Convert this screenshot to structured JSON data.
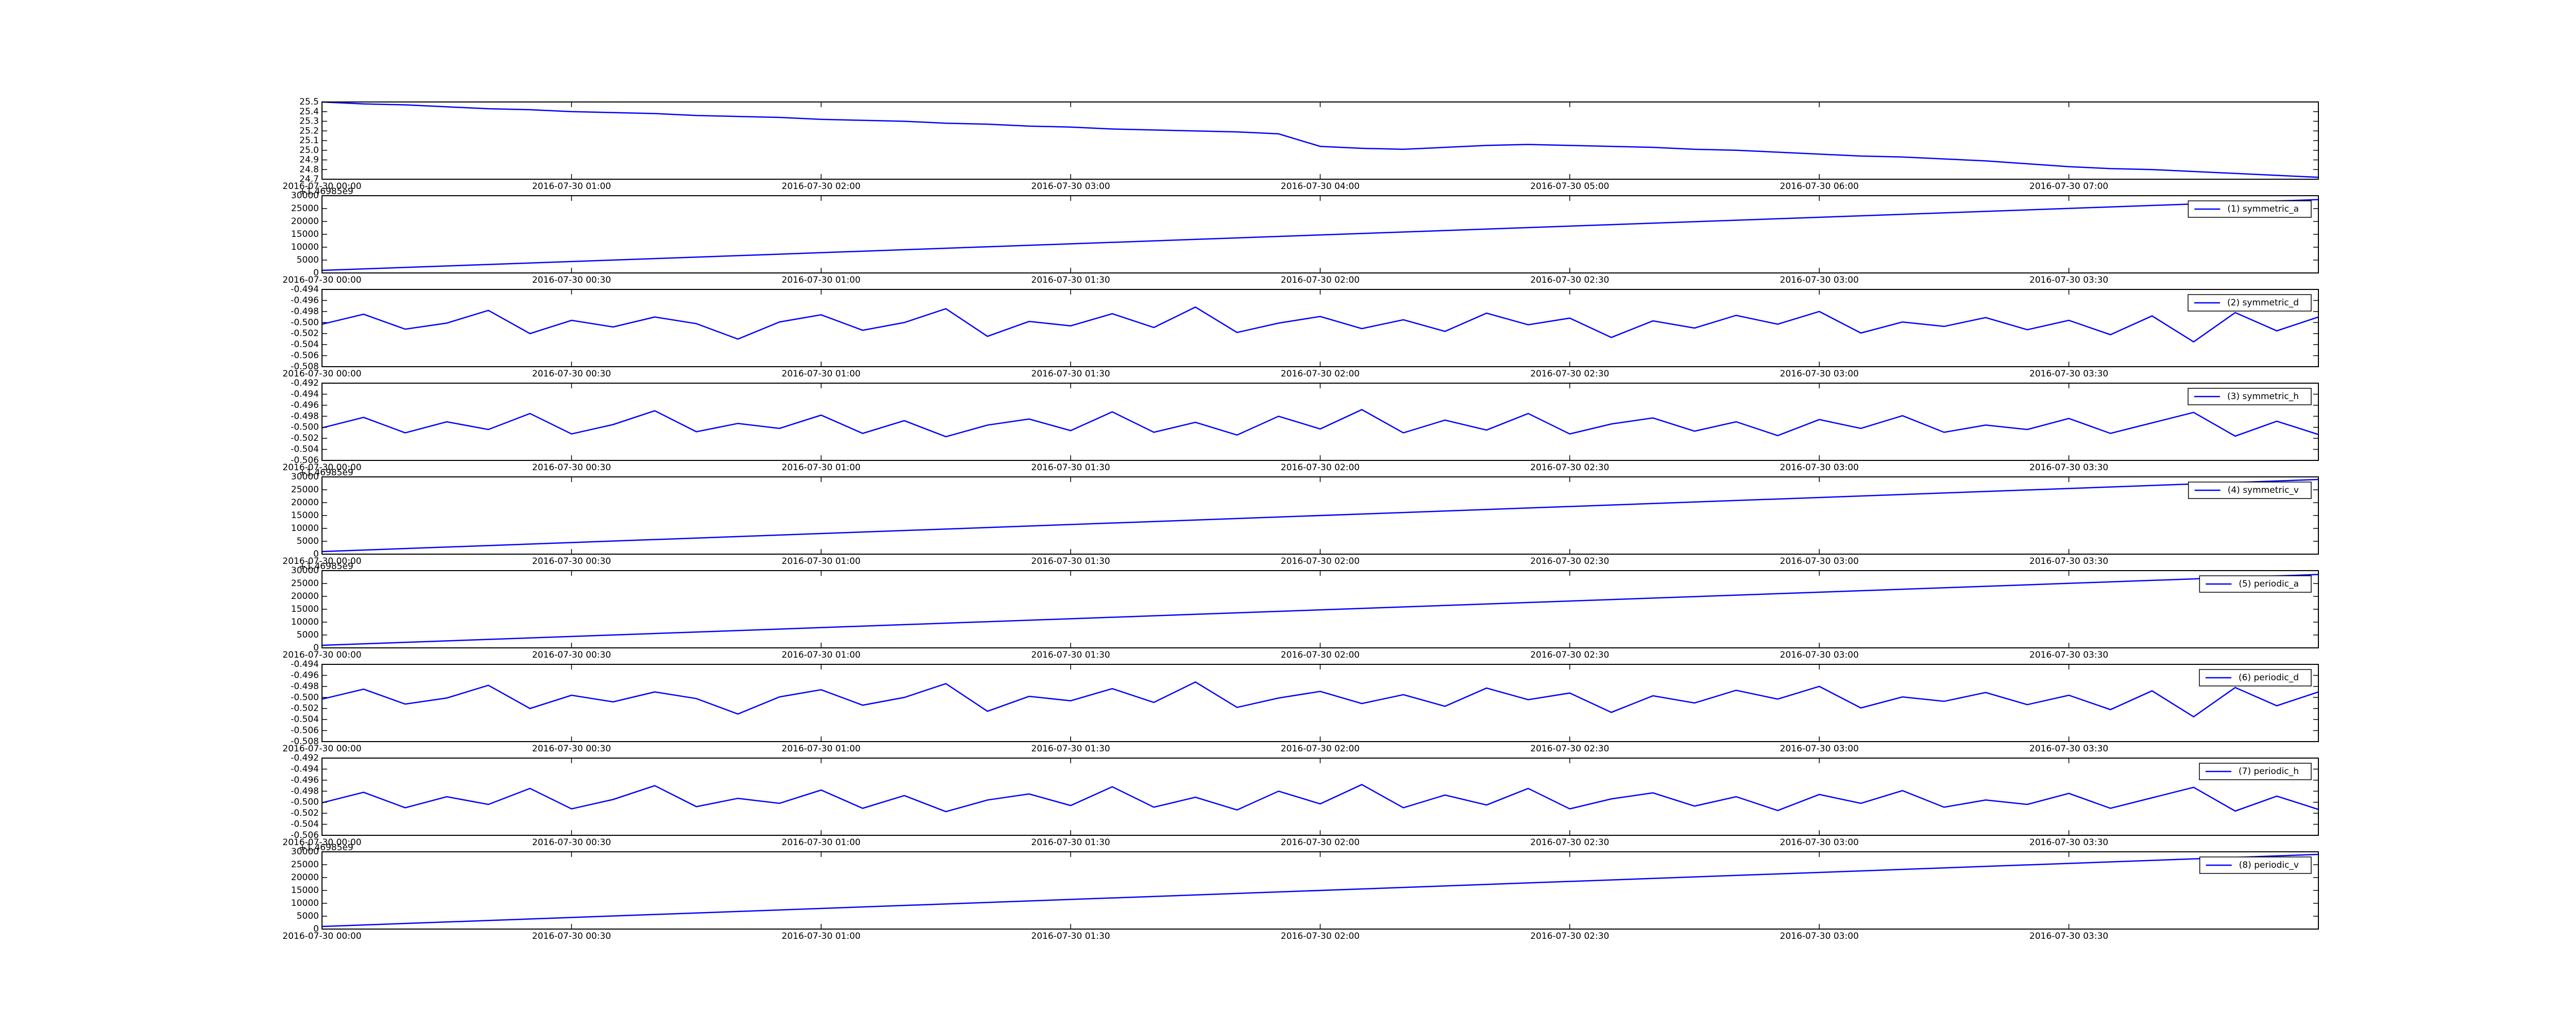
{
  "chart_data": [
    {
      "type": "line",
      "x": [
        "2016-07-30 00:00",
        "2016-07-30 00:10",
        "2016-07-30 00:20",
        "2016-07-30 00:30",
        "2016-07-30 00:40",
        "2016-07-30 00:50",
        "2016-07-30 01:00",
        "2016-07-30 01:10",
        "2016-07-30 01:20",
        "2016-07-30 01:30",
        "2016-07-30 01:40",
        "2016-07-30 01:50",
        "2016-07-30 02:00",
        "2016-07-30 02:10",
        "2016-07-30 02:20",
        "2016-07-30 02:30",
        "2016-07-30 02:40",
        "2016-07-30 02:50",
        "2016-07-30 03:00",
        "2016-07-30 03:10",
        "2016-07-30 03:20",
        "2016-07-30 03:30",
        "2016-07-30 03:40",
        "2016-07-30 03:50",
        "2016-07-30 04:00",
        "2016-07-30 04:10",
        "2016-07-30 04:20",
        "2016-07-30 04:30",
        "2016-07-30 04:40",
        "2016-07-30 04:50",
        "2016-07-30 05:00",
        "2016-07-30 05:10",
        "2016-07-30 05:20",
        "2016-07-30 05:30",
        "2016-07-30 05:40",
        "2016-07-30 05:50",
        "2016-07-30 06:00",
        "2016-07-30 06:10",
        "2016-07-30 06:20",
        "2016-07-30 06:30",
        "2016-07-30 06:40",
        "2016-07-30 06:50",
        "2016-07-30 07:00",
        "2016-07-30 07:10",
        "2016-07-30 07:20",
        "2016-07-30 07:30",
        "2016-07-30 07:40",
        "2016-07-30 07:50",
        "2016-07-30 08:00"
      ],
      "series": [
        {
          "color": "#0000ff",
          "values": [
            25.5,
            25.48,
            25.47,
            25.45,
            25.43,
            25.42,
            25.4,
            25.39,
            25.38,
            25.36,
            25.35,
            25.34,
            25.32,
            25.31,
            25.3,
            25.28,
            25.27,
            25.25,
            25.24,
            25.22,
            25.21,
            25.2,
            25.19,
            25.17,
            25.04,
            25.02,
            25.01,
            25.03,
            25.05,
            25.06,
            25.05,
            25.04,
            25.03,
            25.01,
            25.0,
            24.98,
            24.96,
            24.94,
            24.93,
            24.91,
            24.89,
            24.86,
            24.83,
            24.81,
            24.8,
            24.78,
            24.76,
            24.74,
            24.72
          ]
        }
      ],
      "xlim": [
        "2016-07-30 00:00",
        "2016-07-30 08:00"
      ],
      "xticks": [
        "2016-07-30 00:00",
        "2016-07-30 01:00",
        "2016-07-30 02:00",
        "2016-07-30 03:00",
        "2016-07-30 04:00",
        "2016-07-30 05:00",
        "2016-07-30 06:00",
        "2016-07-30 07:00"
      ],
      "ylim": [
        24.7,
        25.5
      ],
      "yticks": [
        24.7,
        24.8,
        24.9,
        {
          "value": 25,
          "label": "25.0"
        },
        25.1,
        25.2,
        25.3,
        25.4,
        25.5
      ]
    },
    {
      "type": "line",
      "x": [
        "2016-07-30 00:00",
        "2016-07-30 04:00"
      ],
      "y_offset_label": "+1.46985e9",
      "series": [
        {
          "name": "(1) symmetric_a",
          "color": "#0000ff",
          "values": [
            1000,
            28500
          ]
        }
      ],
      "xlim": [
        "2016-07-30 00:00",
        "2016-07-30 04:00"
      ],
      "xticks": [
        "2016-07-30 00:00",
        "2016-07-30 00:30",
        "2016-07-30 01:00",
        "2016-07-30 01:30",
        "2016-07-30 02:00",
        "2016-07-30 02:30",
        "2016-07-30 03:00",
        "2016-07-30 03:30"
      ],
      "ylim": [
        0,
        30000
      ],
      "yticks": [
        0,
        5000,
        10000,
        15000,
        20000,
        25000,
        30000
      ],
      "legend": "upper right"
    },
    {
      "type": "line",
      "x": [
        "2016-07-30 00:00",
        "2016-07-30 00:05",
        "2016-07-30 00:10",
        "2016-07-30 00:15",
        "2016-07-30 00:20",
        "2016-07-30 00:25",
        "2016-07-30 00:30",
        "2016-07-30 00:35",
        "2016-07-30 00:40",
        "2016-07-30 00:45",
        "2016-07-30 00:50",
        "2016-07-30 00:55",
        "2016-07-30 01:00",
        "2016-07-30 01:05",
        "2016-07-30 01:10",
        "2016-07-30 01:15",
        "2016-07-30 01:20",
        "2016-07-30 01:25",
        "2016-07-30 01:30",
        "2016-07-30 01:35",
        "2016-07-30 01:40",
        "2016-07-30 01:45",
        "2016-07-30 01:50",
        "2016-07-30 01:55",
        "2016-07-30 02:00",
        "2016-07-30 02:05",
        "2016-07-30 02:10",
        "2016-07-30 02:15",
        "2016-07-30 02:20",
        "2016-07-30 02:25",
        "2016-07-30 02:30",
        "2016-07-30 02:35",
        "2016-07-30 02:40",
        "2016-07-30 02:45",
        "2016-07-30 02:50",
        "2016-07-30 02:55",
        "2016-07-30 03:00",
        "2016-07-30 03:05",
        "2016-07-30 03:10",
        "2016-07-30 03:15",
        "2016-07-30 03:20",
        "2016-07-30 03:25",
        "2016-07-30 03:30",
        "2016-07-30 03:35",
        "2016-07-30 03:40",
        "2016-07-30 03:45",
        "2016-07-30 03:50",
        "2016-07-30 03:55",
        "2016-07-30 04:00"
      ],
      "series": [
        {
          "name": "(2) symmetric_d",
          "color": "#0000ff",
          "values": [
            -0.5003,
            -0.4985,
            -0.5012,
            -0.5001,
            -0.4978,
            -0.502,
            -0.4996,
            -0.5008,
            -0.499,
            -0.5002,
            -0.503,
            -0.4999,
            -0.4986,
            -0.5014,
            -0.5,
            -0.4975,
            -0.5025,
            -0.4998,
            -0.5006,
            -0.4984,
            -0.5009,
            -0.4972,
            -0.5018,
            -0.5001,
            -0.4989,
            -0.5011,
            -0.4995,
            -0.5016,
            -0.4983,
            -0.5004,
            -0.4992,
            -0.5027,
            -0.4997,
            -0.501,
            -0.4987,
            -0.5003,
            -0.498,
            -0.5019,
            -0.4999,
            -0.5007,
            -0.4991,
            -0.5013,
            -0.4996,
            -0.5022,
            -0.4988,
            -0.5035,
            -0.4982,
            -0.5015,
            -0.499
          ]
        }
      ],
      "xlim": [
        "2016-07-30 00:00",
        "2016-07-30 04:00"
      ],
      "xticks": [
        "2016-07-30 00:00",
        "2016-07-30 00:30",
        "2016-07-30 01:00",
        "2016-07-30 01:30",
        "2016-07-30 02:00",
        "2016-07-30 02:30",
        "2016-07-30 03:00",
        "2016-07-30 03:30"
      ],
      "ylim": [
        -0.508,
        -0.494
      ],
      "yticks": [
        -0.508,
        -0.506,
        -0.504,
        -0.502,
        {
          "value": -0.5,
          "label": "-0.500"
        },
        -0.498,
        -0.496,
        -0.494
      ],
      "legend": "upper right"
    },
    {
      "type": "line",
      "x": [
        "2016-07-30 00:00",
        "2016-07-30 00:05",
        "2016-07-30 00:10",
        "2016-07-30 00:15",
        "2016-07-30 00:20",
        "2016-07-30 00:25",
        "2016-07-30 00:30",
        "2016-07-30 00:35",
        "2016-07-30 00:40",
        "2016-07-30 00:45",
        "2016-07-30 00:50",
        "2016-07-30 00:55",
        "2016-07-30 01:00",
        "2016-07-30 01:05",
        "2016-07-30 01:10",
        "2016-07-30 01:15",
        "2016-07-30 01:20",
        "2016-07-30 01:25",
        "2016-07-30 01:30",
        "2016-07-30 01:35",
        "2016-07-30 01:40",
        "2016-07-30 01:45",
        "2016-07-30 01:50",
        "2016-07-30 01:55",
        "2016-07-30 02:00",
        "2016-07-30 02:05",
        "2016-07-30 02:10",
        "2016-07-30 02:15",
        "2016-07-30 02:20",
        "2016-07-30 02:25",
        "2016-07-30 02:30",
        "2016-07-30 02:35",
        "2016-07-30 02:40",
        "2016-07-30 02:45",
        "2016-07-30 02:50",
        "2016-07-30 02:55",
        "2016-07-30 03:00",
        "2016-07-30 03:05",
        "2016-07-30 03:10",
        "2016-07-30 03:15",
        "2016-07-30 03:20",
        "2016-07-30 03:25",
        "2016-07-30 03:30",
        "2016-07-30 03:35",
        "2016-07-30 03:40",
        "2016-07-30 03:45",
        "2016-07-30 03:50",
        "2016-07-30 03:55",
        "2016-07-30 04:00"
      ],
      "series": [
        {
          "name": "(3) symmetric_h",
          "color": "#0000ff",
          "values": [
            -0.5001,
            -0.4982,
            -0.501,
            -0.499,
            -0.5004,
            -0.4975,
            -0.5012,
            -0.4995,
            -0.497,
            -0.5008,
            -0.4993,
            -0.5002,
            -0.4978,
            -0.5011,
            -0.4988,
            -0.5017,
            -0.4996,
            -0.4985,
            -0.5006,
            -0.4972,
            -0.5009,
            -0.4991,
            -0.5014,
            -0.498,
            -0.5003,
            -0.4968,
            -0.501,
            -0.4987,
            -0.5005,
            -0.4975,
            -0.5012,
            -0.4994,
            -0.4983,
            -0.5007,
            -0.499,
            -0.5015,
            -0.4986,
            -0.5002,
            -0.4979,
            -0.5009,
            -0.4996,
            -0.5004,
            -0.4984,
            -0.5011,
            -0.4992,
            -0.4973,
            -0.5016,
            -0.4989,
            -0.5013
          ]
        }
      ],
      "xlim": [
        "2016-07-30 00:00",
        "2016-07-30 04:00"
      ],
      "xticks": [
        "2016-07-30 00:00",
        "2016-07-30 00:30",
        "2016-07-30 01:00",
        "2016-07-30 01:30",
        "2016-07-30 02:00",
        "2016-07-30 02:30",
        "2016-07-30 03:00",
        "2016-07-30 03:30"
      ],
      "ylim": [
        -0.506,
        -0.492
      ],
      "yticks": [
        -0.506,
        -0.504,
        -0.502,
        {
          "value": -0.5,
          "label": "-0.500"
        },
        -0.498,
        -0.496,
        -0.494,
        -0.492
      ],
      "legend": "upper right"
    },
    {
      "type": "line",
      "x": [
        "2016-07-30 00:00",
        "2016-07-30 04:00"
      ],
      "y_offset_label": "+1.46985e9",
      "series": [
        {
          "name": "(4) symmetric_v",
          "color": "#0000ff",
          "values": [
            1000,
            29000
          ]
        }
      ],
      "xlim": [
        "2016-07-30 00:00",
        "2016-07-30 04:00"
      ],
      "xticks": [
        "2016-07-30 00:00",
        "2016-07-30 00:30",
        "2016-07-30 01:00",
        "2016-07-30 01:30",
        "2016-07-30 02:00",
        "2016-07-30 02:30",
        "2016-07-30 03:00",
        "2016-07-30 03:30"
      ],
      "ylim": [
        0,
        30000
      ],
      "yticks": [
        0,
        5000,
        10000,
        15000,
        20000,
        25000,
        30000
      ],
      "legend": "upper right"
    },
    {
      "type": "line",
      "x": [
        "2016-07-30 00:00",
        "2016-07-30 04:00"
      ],
      "y_offset_label": "+1.46985e9",
      "series": [
        {
          "name": "(5) periodic_a",
          "color": "#0000ff",
          "values": [
            1000,
            28500
          ]
        }
      ],
      "xlim": [
        "2016-07-30 00:00",
        "2016-07-30 04:00"
      ],
      "xticks": [
        "2016-07-30 00:00",
        "2016-07-30 00:30",
        "2016-07-30 01:00",
        "2016-07-30 01:30",
        "2016-07-30 02:00",
        "2016-07-30 02:30",
        "2016-07-30 03:00",
        "2016-07-30 03:30"
      ],
      "ylim": [
        0,
        30000
      ],
      "yticks": [
        0,
        5000,
        10000,
        15000,
        20000,
        25000,
        30000
      ],
      "legend": "upper right"
    },
    {
      "type": "line",
      "x": [
        "2016-07-30 00:00",
        "2016-07-30 00:05",
        "2016-07-30 00:10",
        "2016-07-30 00:15",
        "2016-07-30 00:20",
        "2016-07-30 00:25",
        "2016-07-30 00:30",
        "2016-07-30 00:35",
        "2016-07-30 00:40",
        "2016-07-30 00:45",
        "2016-07-30 00:50",
        "2016-07-30 00:55",
        "2016-07-30 01:00",
        "2016-07-30 01:05",
        "2016-07-30 01:10",
        "2016-07-30 01:15",
        "2016-07-30 01:20",
        "2016-07-30 01:25",
        "2016-07-30 01:30",
        "2016-07-30 01:35",
        "2016-07-30 01:40",
        "2016-07-30 01:45",
        "2016-07-30 01:50",
        "2016-07-30 01:55",
        "2016-07-30 02:00",
        "2016-07-30 02:05",
        "2016-07-30 02:10",
        "2016-07-30 02:15",
        "2016-07-30 02:20",
        "2016-07-30 02:25",
        "2016-07-30 02:30",
        "2016-07-30 02:35",
        "2016-07-30 02:40",
        "2016-07-30 02:45",
        "2016-07-30 02:50",
        "2016-07-30 02:55",
        "2016-07-30 03:00",
        "2016-07-30 03:05",
        "2016-07-30 03:10",
        "2016-07-30 03:15",
        "2016-07-30 03:20",
        "2016-07-30 03:25",
        "2016-07-30 03:30",
        "2016-07-30 03:35",
        "2016-07-30 03:40",
        "2016-07-30 03:45",
        "2016-07-30 03:50",
        "2016-07-30 03:55",
        "2016-07-30 04:00"
      ],
      "series": [
        {
          "name": "(6) periodic_d",
          "color": "#0000ff",
          "values": [
            -0.5003,
            -0.4985,
            -0.5012,
            -0.5001,
            -0.4978,
            -0.502,
            -0.4996,
            -0.5008,
            -0.499,
            -0.5002,
            -0.503,
            -0.4999,
            -0.4986,
            -0.5014,
            -0.5,
            -0.4975,
            -0.5025,
            -0.4998,
            -0.5006,
            -0.4984,
            -0.5009,
            -0.4972,
            -0.5018,
            -0.5001,
            -0.4989,
            -0.5011,
            -0.4995,
            -0.5016,
            -0.4983,
            -0.5004,
            -0.4992,
            -0.5027,
            -0.4997,
            -0.501,
            -0.4987,
            -0.5003,
            -0.498,
            -0.5019,
            -0.4999,
            -0.5007,
            -0.4991,
            -0.5013,
            -0.4996,
            -0.5022,
            -0.4988,
            -0.5035,
            -0.4982,
            -0.5015,
            -0.499
          ]
        }
      ],
      "xlim": [
        "2016-07-30 00:00",
        "2016-07-30 04:00"
      ],
      "xticks": [
        "2016-07-30 00:00",
        "2016-07-30 00:30",
        "2016-07-30 01:00",
        "2016-07-30 01:30",
        "2016-07-30 02:00",
        "2016-07-30 02:30",
        "2016-07-30 03:00",
        "2016-07-30 03:30"
      ],
      "ylim": [
        -0.508,
        -0.494
      ],
      "yticks": [
        -0.508,
        -0.506,
        -0.504,
        -0.502,
        {
          "value": -0.5,
          "label": "-0.500"
        },
        -0.498,
        -0.496,
        -0.494
      ],
      "legend": "upper right"
    },
    {
      "type": "line",
      "x": [
        "2016-07-30 00:00",
        "2016-07-30 00:05",
        "2016-07-30 00:10",
        "2016-07-30 00:15",
        "2016-07-30 00:20",
        "2016-07-30 00:25",
        "2016-07-30 00:30",
        "2016-07-30 00:35",
        "2016-07-30 00:40",
        "2016-07-30 00:45",
        "2016-07-30 00:50",
        "2016-07-30 00:55",
        "2016-07-30 01:00",
        "2016-07-30 01:05",
        "2016-07-30 01:10",
        "2016-07-30 01:15",
        "2016-07-30 01:20",
        "2016-07-30 01:25",
        "2016-07-30 01:30",
        "2016-07-30 01:35",
        "2016-07-30 01:40",
        "2016-07-30 01:45",
        "2016-07-30 01:50",
        "2016-07-30 01:55",
        "2016-07-30 02:00",
        "2016-07-30 02:05",
        "2016-07-30 02:10",
        "2016-07-30 02:15",
        "2016-07-30 02:20",
        "2016-07-30 02:25",
        "2016-07-30 02:30",
        "2016-07-30 02:35",
        "2016-07-30 02:40",
        "2016-07-30 02:45",
        "2016-07-30 02:50",
        "2016-07-30 02:55",
        "2016-07-30 03:00",
        "2016-07-30 03:05",
        "2016-07-30 03:10",
        "2016-07-30 03:15",
        "2016-07-30 03:20",
        "2016-07-30 03:25",
        "2016-07-30 03:30",
        "2016-07-30 03:35",
        "2016-07-30 03:40",
        "2016-07-30 03:45",
        "2016-07-30 03:50",
        "2016-07-30 03:55",
        "2016-07-30 04:00"
      ],
      "series": [
        {
          "name": "(7) periodic_h",
          "color": "#0000ff",
          "values": [
            -0.5001,
            -0.4982,
            -0.501,
            -0.499,
            -0.5004,
            -0.4975,
            -0.5012,
            -0.4995,
            -0.497,
            -0.5008,
            -0.4993,
            -0.5002,
            -0.4978,
            -0.5011,
            -0.4988,
            -0.5017,
            -0.4996,
            -0.4985,
            -0.5006,
            -0.4972,
            -0.5009,
            -0.4991,
            -0.5014,
            -0.498,
            -0.5003,
            -0.4968,
            -0.501,
            -0.4987,
            -0.5005,
            -0.4975,
            -0.5012,
            -0.4994,
            -0.4983,
            -0.5007,
            -0.499,
            -0.5015,
            -0.4986,
            -0.5002,
            -0.4979,
            -0.5009,
            -0.4996,
            -0.5004,
            -0.4984,
            -0.5011,
            -0.4992,
            -0.4973,
            -0.5016,
            -0.4989,
            -0.5013
          ]
        }
      ],
      "xlim": [
        "2016-07-30 00:00",
        "2016-07-30 04:00"
      ],
      "xticks": [
        "2016-07-30 00:00",
        "2016-07-30 00:30",
        "2016-07-30 01:00",
        "2016-07-30 01:30",
        "2016-07-30 02:00",
        "2016-07-30 02:30",
        "2016-07-30 03:00",
        "2016-07-30 03:30"
      ],
      "ylim": [
        -0.506,
        -0.492
      ],
      "yticks": [
        -0.506,
        -0.504,
        -0.502,
        {
          "value": -0.5,
          "label": "-0.500"
        },
        -0.498,
        -0.496,
        -0.494,
        -0.492
      ],
      "legend": "upper right"
    },
    {
      "type": "line",
      "x": [
        "2016-07-30 00:00",
        "2016-07-30 04:00"
      ],
      "y_offset_label": "+1.46985e9",
      "series": [
        {
          "name": "(8) periodic_v",
          "color": "#0000ff",
          "values": [
            1000,
            29000
          ]
        }
      ],
      "xlim": [
        "2016-07-30 00:00",
        "2016-07-30 04:00"
      ],
      "xticks": [
        "2016-07-30 00:00",
        "2016-07-30 00:30",
        "2016-07-30 01:00",
        "2016-07-30 01:30",
        "2016-07-30 02:00",
        "2016-07-30 02:30",
        "2016-07-30 03:00",
        "2016-07-30 03:30"
      ],
      "ylim": [
        0,
        30000
      ],
      "yticks": [
        0,
        5000,
        10000,
        15000,
        20000,
        25000,
        30000
      ],
      "legend": "upper right"
    }
  ]
}
